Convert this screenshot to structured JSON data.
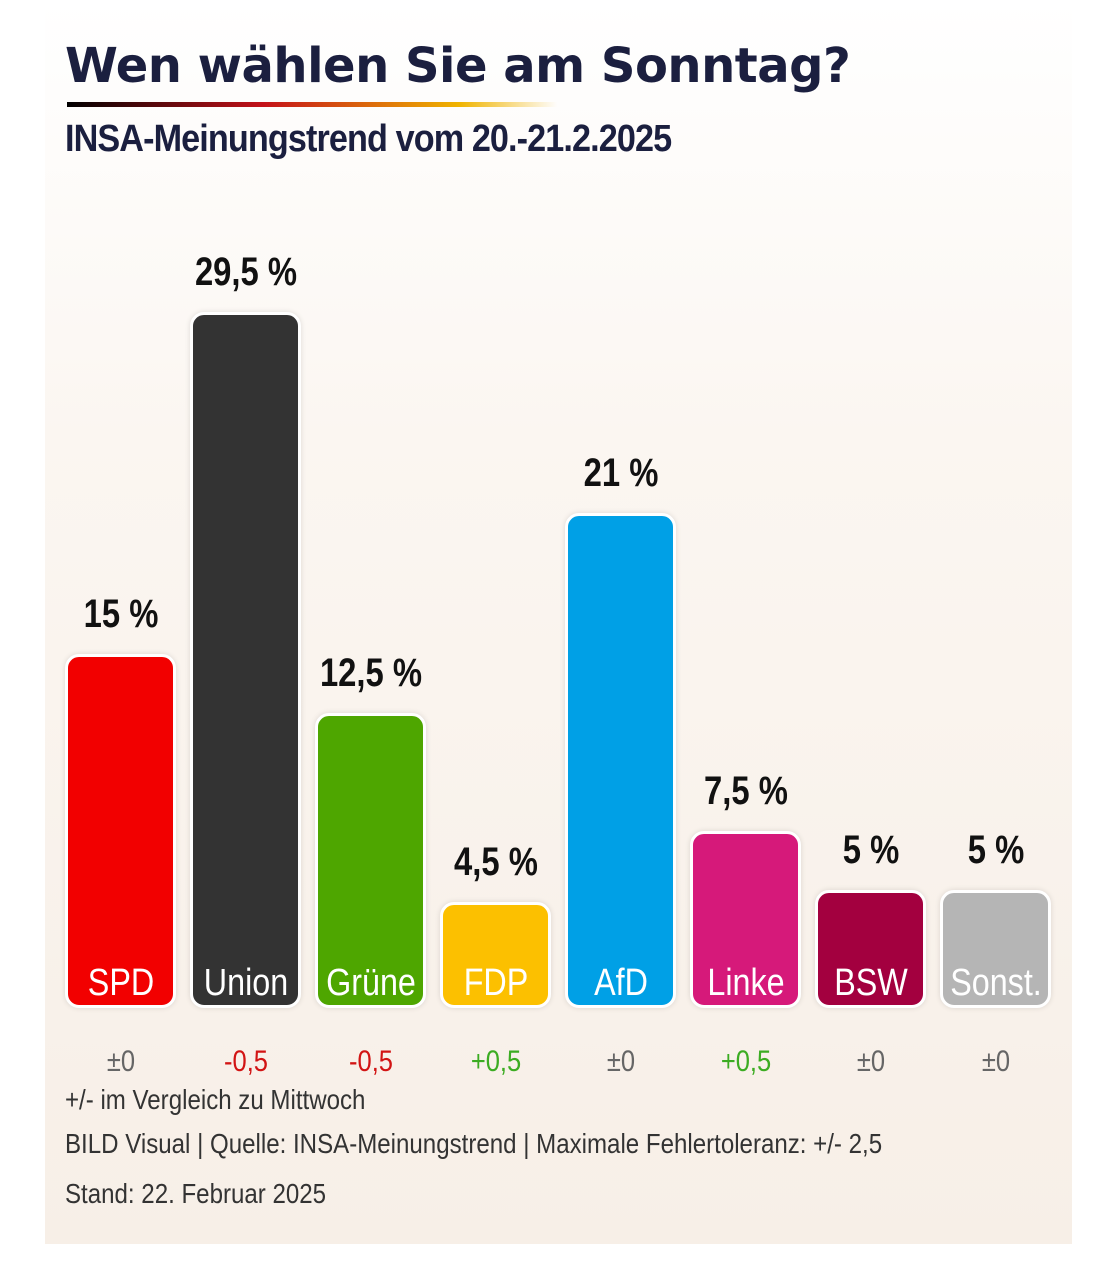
{
  "header": {
    "title": "Wen wählen Sie am Sonntag?",
    "subtitle": "INSA-Meinungstrend vom 20.-21.2.2025"
  },
  "chart_data": {
    "type": "bar",
    "categories": [
      "SPD",
      "Union",
      "Grüne",
      "FDP",
      "AfD",
      "Linke",
      "BSW",
      "Sonst."
    ],
    "values": [
      15,
      29.5,
      12.5,
      4.5,
      21,
      7.5,
      5,
      5
    ],
    "value_labels": [
      "15 %",
      "29,5 %",
      "12,5 %",
      "4,5 %",
      "21 %",
      "7,5 %",
      "5 %",
      "5 %"
    ],
    "changes": [
      "±0",
      "-0,5",
      "-0,5",
      "+0,5",
      "±0",
      "+0,5",
      "±0",
      "±0"
    ],
    "colors": [
      "#f20000",
      "#333333",
      "#4ea600",
      "#fcc000",
      "#00a0e6",
      "#d6197a",
      "#a3003f",
      "#b5b5b5"
    ],
    "change_colors": {
      "neutral": "#666666",
      "negative": "#d21414",
      "positive": "#3cac22"
    },
    "ylim": [
      0,
      29.5
    ],
    "grid": false,
    "legend": "none"
  },
  "footer": {
    "change_note": "+/- im Vergleich zu Mittwoch",
    "source": "BILD Visual | Quelle: INSA-Meinungstrend | Maximale Fehlertoleranz: +/- 2,5",
    "date": "Stand: 22. Februar 2025"
  }
}
